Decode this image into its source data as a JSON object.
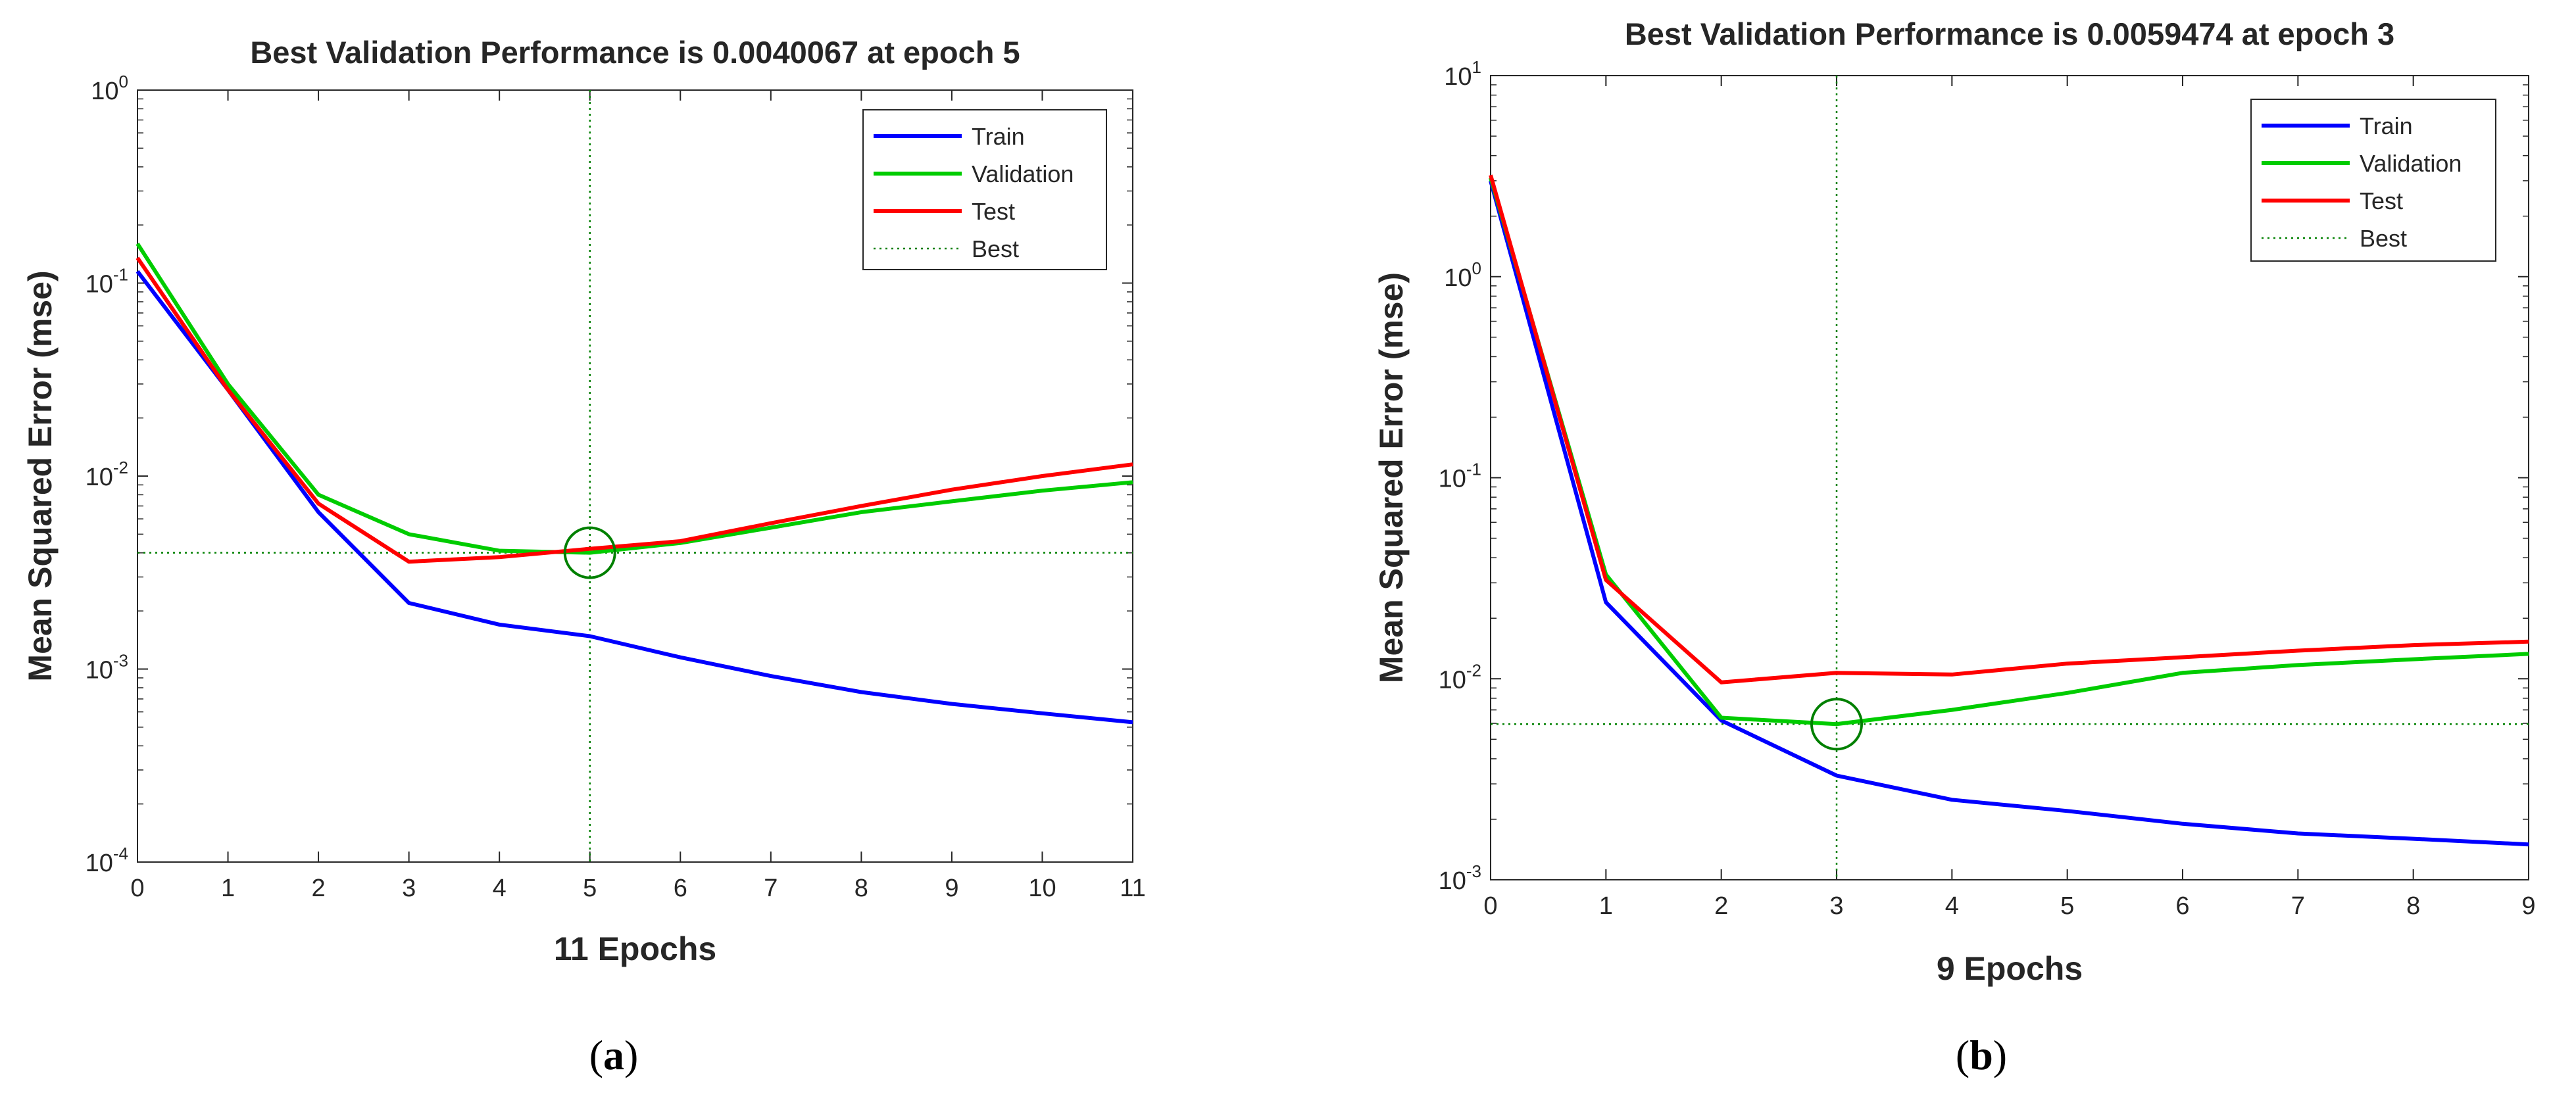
{
  "chart_data": [
    {
      "type": "line",
      "panel_label": "a",
      "title": "Best Validation Performance is 0.0040067 at epoch 5",
      "xlabel": "11 Epochs",
      "ylabel": "Mean Squared Error  (mse)",
      "yscale": "log",
      "xlim": [
        0,
        11
      ],
      "ylim": [
        0.0001,
        1
      ],
      "xticks": [
        0,
        1,
        2,
        3,
        4,
        5,
        6,
        7,
        8,
        9,
        10,
        11
      ],
      "yticks": [
        {
          "base": "10",
          "exp": "-4",
          "value": 0.0001
        },
        {
          "base": "10",
          "exp": "-3",
          "value": 0.001
        },
        {
          "base": "10",
          "exp": "-2",
          "value": 0.01
        },
        {
          "base": "10",
          "exp": "-1",
          "value": 0.1
        },
        {
          "base": "10",
          "exp": "0",
          "value": 1
        }
      ],
      "x": [
        0,
        1,
        2,
        3,
        4,
        5,
        6,
        7,
        8,
        9,
        10,
        11
      ],
      "series": [
        {
          "name": "Train",
          "color": "#0000ff",
          "values": [
            0.115,
            0.028,
            0.0065,
            0.0022,
            0.0017,
            0.00148,
            0.00115,
            0.00092,
            0.00076,
            0.00066,
            0.00059,
            0.00053
          ]
        },
        {
          "name": "Validation",
          "color": "#00cc00",
          "values": [
            0.16,
            0.03,
            0.008,
            0.005,
            0.0041,
            0.0040067,
            0.0045,
            0.0054,
            0.0065,
            0.0074,
            0.0084,
            0.0093
          ]
        },
        {
          "name": "Test",
          "color": "#ff0000",
          "values": [
            0.135,
            0.028,
            0.0072,
            0.0036,
            0.0038,
            0.0042,
            0.0046,
            0.0057,
            0.007,
            0.0085,
            0.01,
            0.0115
          ]
        }
      ],
      "best": {
        "label": "Best",
        "color": "#008000",
        "epoch": 5,
        "value": 0.0040067
      },
      "legend": {
        "entries": [
          "Train",
          "Validation",
          "Test",
          "Best"
        ],
        "location": "top-right"
      }
    },
    {
      "type": "line",
      "panel_label": "b",
      "title": "Best Validation Performance is 0.0059474 at epoch 3",
      "xlabel": "9 Epochs",
      "ylabel": "Mean Squared Error  (mse)",
      "yscale": "log",
      "xlim": [
        0,
        9
      ],
      "ylim": [
        0.001,
        10
      ],
      "xticks": [
        0,
        1,
        2,
        3,
        4,
        5,
        6,
        7,
        8,
        9
      ],
      "yticks": [
        {
          "base": "10",
          "exp": "-3",
          "value": 0.001
        },
        {
          "base": "10",
          "exp": "-2",
          "value": 0.01
        },
        {
          "base": "10",
          "exp": "-1",
          "value": 0.1
        },
        {
          "base": "10",
          "exp": "0",
          "value": 1
        },
        {
          "base": "10",
          "exp": "1",
          "value": 10
        }
      ],
      "x": [
        0,
        1,
        2,
        3,
        4,
        5,
        6,
        7,
        8,
        9
      ],
      "series": [
        {
          "name": "Train",
          "color": "#0000ff",
          "values": [
            3.0,
            0.024,
            0.0062,
            0.0033,
            0.0025,
            0.0022,
            0.0019,
            0.0017,
            0.0016,
            0.0015
          ]
        },
        {
          "name": "Validation",
          "color": "#00cc00",
          "values": [
            3.1,
            0.033,
            0.0064,
            0.0059474,
            0.007,
            0.0085,
            0.0107,
            0.0117,
            0.0125,
            0.0133
          ]
        },
        {
          "name": "Test",
          "color": "#ff0000",
          "values": [
            3.2,
            0.031,
            0.0096,
            0.0107,
            0.0105,
            0.0119,
            0.0128,
            0.0138,
            0.0147,
            0.0153
          ]
        }
      ],
      "best": {
        "label": "Best",
        "color": "#008000",
        "epoch": 3,
        "value": 0.0059474
      },
      "legend": {
        "entries": [
          "Train",
          "Validation",
          "Test",
          "Best"
        ],
        "location": "top-right"
      }
    }
  ]
}
